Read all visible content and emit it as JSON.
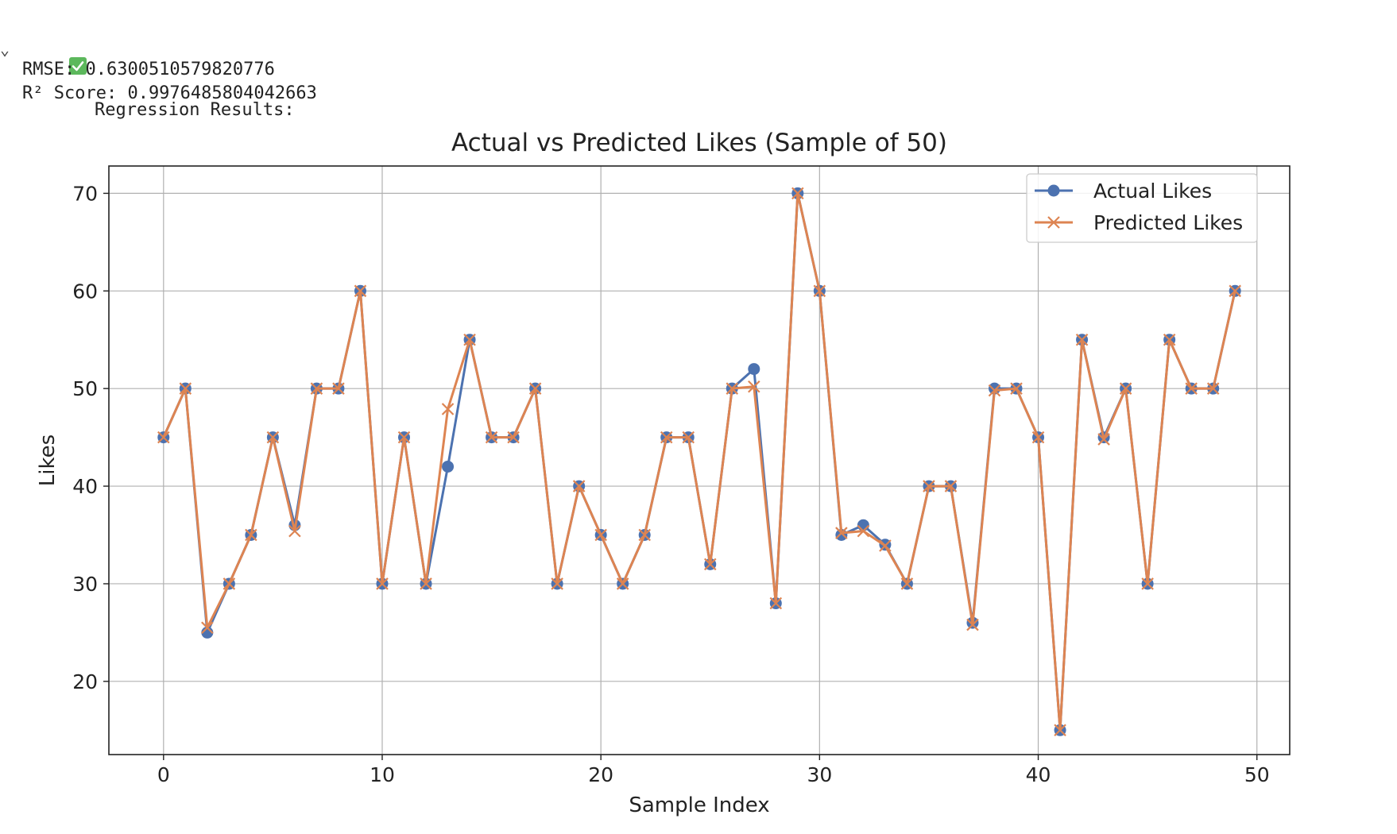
{
  "output": {
    "prompt_mark": "⌄",
    "status_line": "Regression Results:",
    "rmse": "RMSE: 0.6300510579820776",
    "r2": "R² Score: 0.9976485804042663"
  },
  "icons": {
    "status": "check-mark-icon"
  },
  "colors": {
    "actual": "#4c72b0",
    "predicted": "#dd8452",
    "check": "#5cb85c"
  },
  "chart_data": {
    "type": "line",
    "title": "Actual vs Predicted Likes (Sample of 50)",
    "xlabel": "Sample Index",
    "ylabel": "Likes",
    "xlim": [
      -2.5,
      51.5
    ],
    "ylim": [
      12.5,
      72.8
    ],
    "xticks": [
      0,
      10,
      20,
      30,
      40,
      50
    ],
    "yticks": [
      20,
      30,
      40,
      50,
      60,
      70
    ],
    "grid": true,
    "legend": "top-right",
    "x": [
      0,
      1,
      2,
      3,
      4,
      5,
      6,
      7,
      8,
      9,
      10,
      11,
      12,
      13,
      14,
      15,
      16,
      17,
      18,
      19,
      20,
      21,
      22,
      23,
      24,
      25,
      26,
      27,
      28,
      29,
      30,
      31,
      32,
      33,
      34,
      35,
      36,
      37,
      38,
      39,
      40,
      41,
      42,
      43,
      44,
      45,
      46,
      47,
      48,
      49
    ],
    "series": [
      {
        "name": "Actual Likes",
        "marker": "circle",
        "values": [
          45,
          50,
          25,
          30,
          35,
          45,
          36,
          50,
          50,
          60,
          30,
          45,
          30,
          42,
          55,
          45,
          45,
          50,
          30,
          40,
          35,
          30,
          35,
          45,
          45,
          32,
          50,
          52,
          28,
          70,
          60,
          35,
          36,
          34,
          30,
          40,
          40,
          26,
          50,
          50,
          45,
          15,
          55,
          45,
          50,
          30,
          55,
          50,
          50,
          60
        ]
      },
      {
        "name": "Predicted Likes",
        "marker": "x",
        "values": [
          45,
          50,
          25.5,
          30,
          35,
          45,
          35.4,
          50,
          50,
          60,
          30,
          45,
          30,
          47.9,
          55,
          45,
          45,
          50,
          30,
          40,
          35,
          30,
          35,
          45,
          45,
          32,
          50,
          50.2,
          28,
          70,
          60,
          35.2,
          35.4,
          33.9,
          30,
          40,
          40,
          25.8,
          49.8,
          50,
          45,
          15,
          55,
          44.8,
          50,
          30,
          55,
          50,
          50,
          60
        ]
      }
    ]
  }
}
